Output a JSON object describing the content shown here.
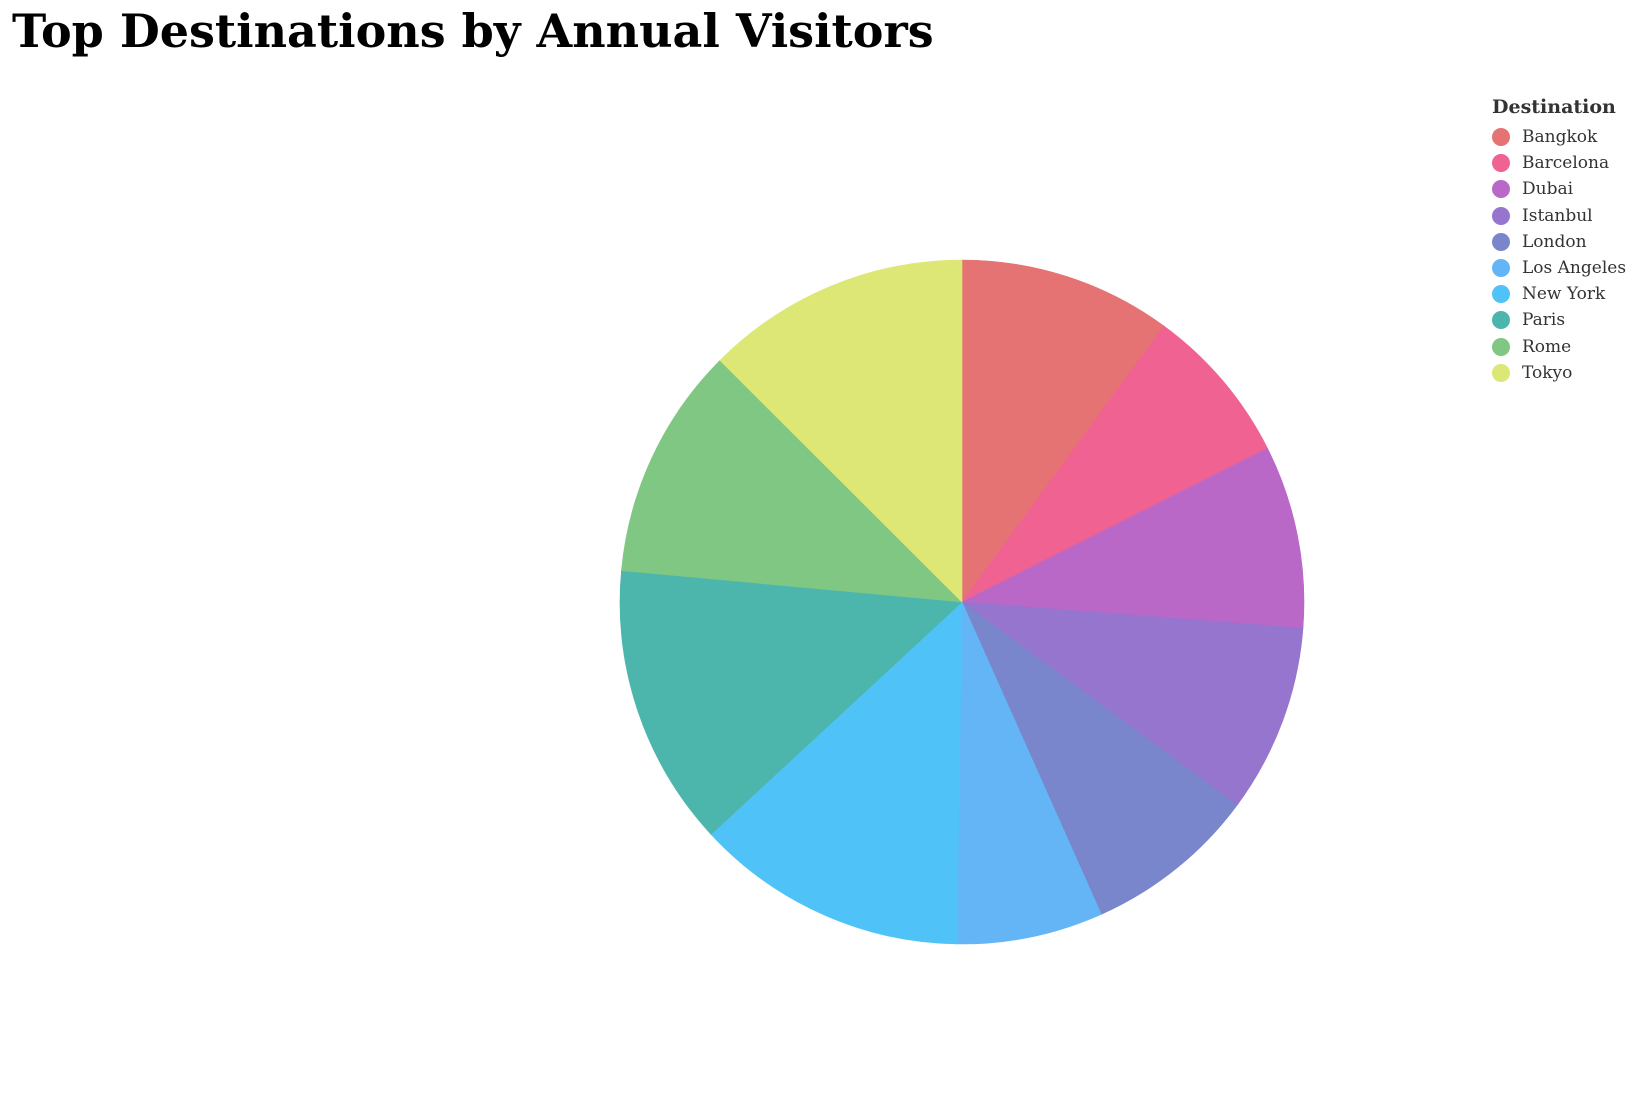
{
  "chart_data": {
    "type": "pie",
    "title": "Top Destinations by Annual Visitors",
    "legend_title": "Destination",
    "legend_position": "top-right",
    "categories": [
      "Bangkok",
      "Barcelona",
      "Dubai",
      "Istanbul",
      "London",
      "Los Angeles",
      "New York",
      "Paris",
      "Rome",
      "Tokyo"
    ],
    "values": [
      22.8,
      17.1,
      19.6,
      20.2,
      18.6,
      15.7,
      29.2,
      30.3,
      25.0,
      28.4
    ],
    "colors": [
      "#e57373",
      "#f06292",
      "#ba68c8",
      "#9575cd",
      "#7986cb",
      "#64b5f6",
      "#4fc3f7",
      "#4db6ac",
      "#81c784",
      "#dce775"
    ]
  }
}
